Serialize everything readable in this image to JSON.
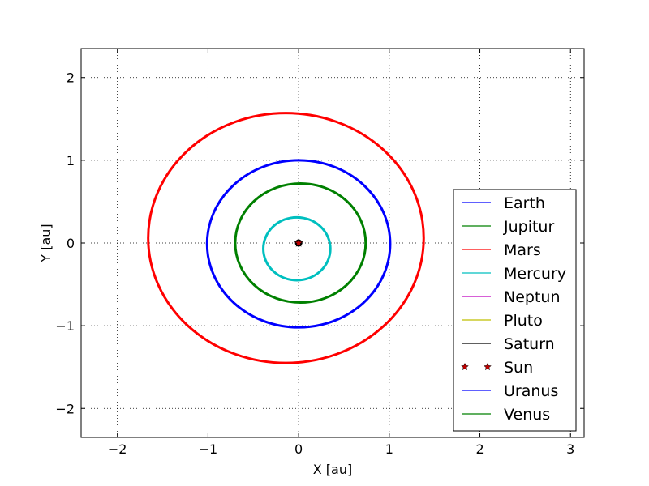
{
  "chart_data": {
    "type": "line",
    "title": "",
    "xlabel": "X [au]",
    "ylabel": "Y [au]",
    "xlim": [
      -2.4,
      3.15
    ],
    "ylim": [
      -2.35,
      2.35
    ],
    "xticks": [
      -2,
      -1,
      0,
      1,
      2,
      3
    ],
    "yticks": [
      -2,
      -1,
      0,
      1,
      2
    ],
    "grid": true,
    "legend_position": "lower-right",
    "series": [
      {
        "name": "Earth",
        "kind": "orbit",
        "color": "#0000ff",
        "center": [
          0.0,
          -0.01
        ],
        "rx": 1.01,
        "ry": 1.01
      },
      {
        "name": "Jupitur",
        "kind": "orbit",
        "color": "#008000",
        "center": [
          0.02,
          0.0
        ],
        "rx": 0.72,
        "ry": 0.72
      },
      {
        "name": "Mars",
        "kind": "orbit",
        "color": "#ff0000",
        "center": [
          -0.14,
          0.06
        ],
        "rx": 1.52,
        "ry": 1.51
      },
      {
        "name": "Mercury",
        "kind": "orbit",
        "color": "#00bfbf",
        "center": [
          -0.02,
          -0.07
        ],
        "rx": 0.37,
        "ry": 0.38
      },
      {
        "name": "Neptun",
        "kind": "orbit",
        "color": "#bf00bf",
        "center": [
          0.0,
          0.0
        ],
        "rx": 0.0,
        "ry": 0.0
      },
      {
        "name": "Pluto",
        "kind": "orbit",
        "color": "#bfbf00",
        "center": [
          0.0,
          0.0
        ],
        "rx": 0.0,
        "ry": 0.0
      },
      {
        "name": "Saturn",
        "kind": "orbit",
        "color": "#000000",
        "center": [
          0.0,
          0.0
        ],
        "rx": 0.0,
        "ry": 0.0
      },
      {
        "name": "Sun",
        "kind": "marker",
        "color": "#bf0000",
        "x": [
          0.0
        ],
        "y": [
          0.0
        ]
      },
      {
        "name": "Uranus",
        "kind": "orbit",
        "color": "#0000ff",
        "center": [
          0.0,
          0.0
        ],
        "rx": 0.0,
        "ry": 0.0
      },
      {
        "name": "Venus",
        "kind": "orbit",
        "color": "#008000",
        "center": [
          0.0,
          0.0
        ],
        "rx": 0.0,
        "ry": 0.0
      }
    ]
  }
}
